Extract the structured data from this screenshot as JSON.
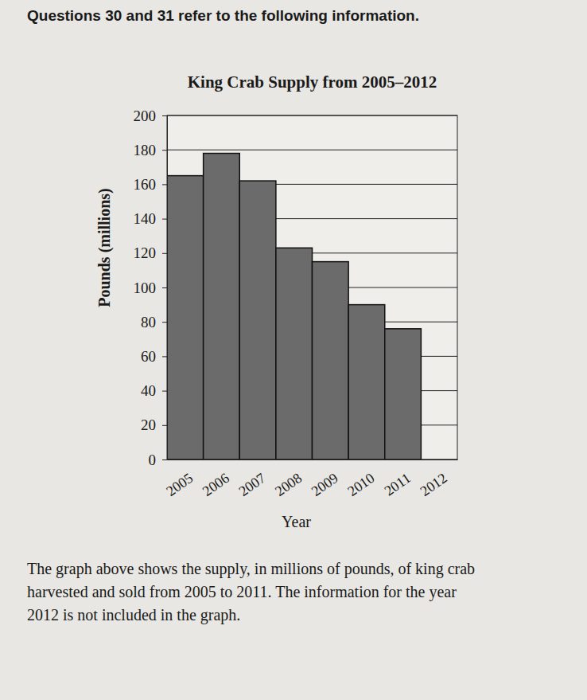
{
  "chart_data": {
    "type": "bar",
    "title": "King Crab Supply from 2005–2012",
    "x_label": "Year",
    "y_label": "Pounds (millions)",
    "categories": [
      "2005",
      "2006",
      "2007",
      "2008",
      "2009",
      "2010",
      "2011",
      "2012"
    ],
    "values": [
      165,
      178,
      162,
      123,
      115,
      90,
      76,
      null
    ],
    "color": "#6b6b6b",
    "ylim": [
      0,
      200
    ],
    "yticks": [
      0,
      20,
      40,
      60,
      80,
      100,
      120,
      140,
      160,
      180,
      200
    ],
    "grid": true,
    "annotations": [
      "Questions 30 and 31 refer to the following information.",
      "The graph above shows the supply, in millions of pounds, of king crab harvested and sold from 2005 to 2011. The information for the year 2012 is not included in the graph."
    ]
  }
}
